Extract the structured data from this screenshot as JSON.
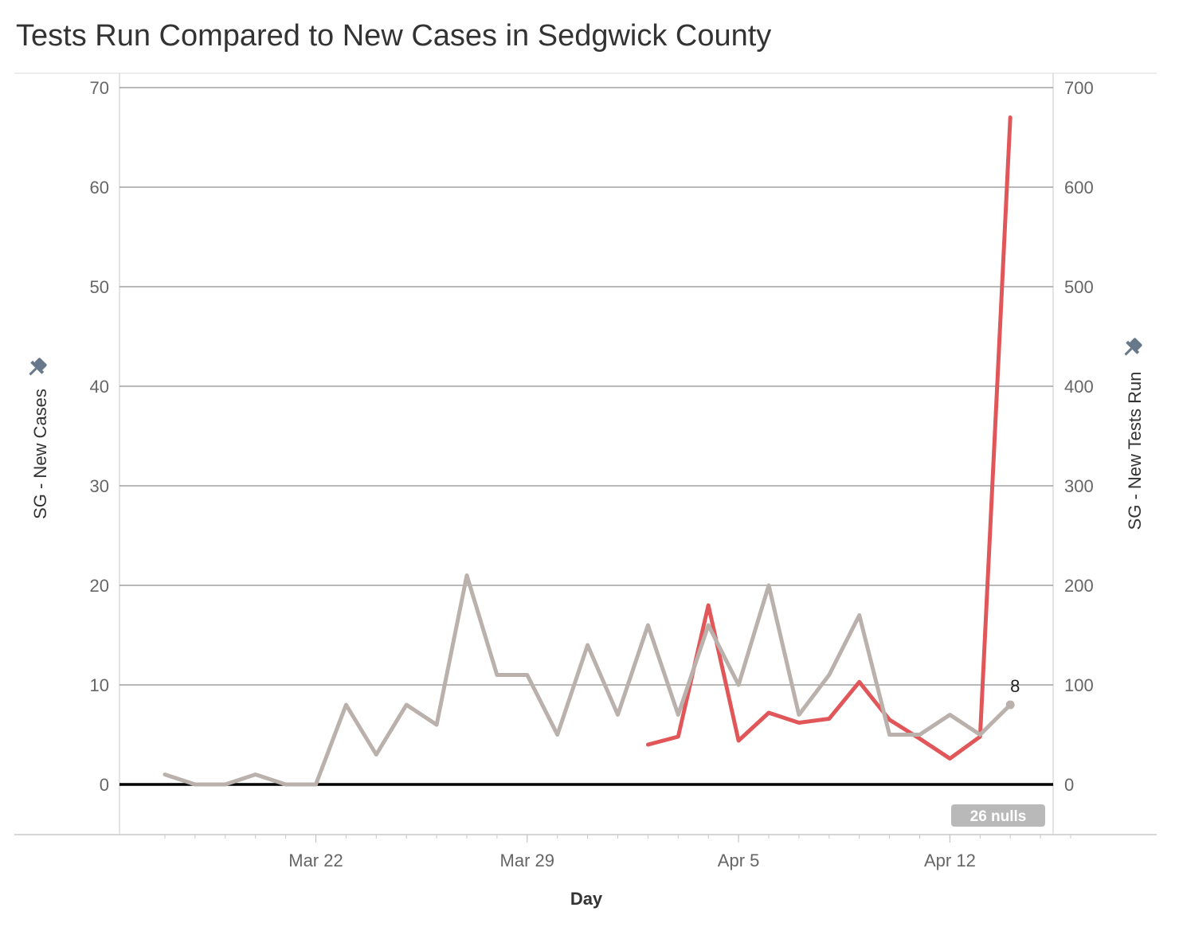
{
  "chart_data": {
    "type": "line",
    "title": "Tests Run Compared to New Cases in Sedgwick County",
    "xlabel": "Day",
    "ylabel_left": "SG - New Cases",
    "ylabel_right": "SG - New Tests Run",
    "ylim_left": [
      0,
      70
    ],
    "ylim_right": [
      0,
      700
    ],
    "yticks_left": [
      "0",
      "10",
      "20",
      "30",
      "40",
      "50",
      "60",
      "70"
    ],
    "yticks_right": [
      "0",
      "100",
      "200",
      "300",
      "400",
      "500",
      "600",
      "700"
    ],
    "x_tick_labels": [
      "Mar 22",
      "Mar 29",
      "Apr 5",
      "Apr 12"
    ],
    "x": [
      "Mar 17",
      "Mar 18",
      "Mar 19",
      "Mar 20",
      "Mar 21",
      "Mar 22",
      "Mar 23",
      "Mar 24",
      "Mar 25",
      "Mar 26",
      "Mar 27",
      "Mar 28",
      "Mar 29",
      "Mar 30",
      "Mar 31",
      "Apr 1",
      "Apr 2",
      "Apr 3",
      "Apr 4",
      "Apr 5",
      "Apr 6",
      "Apr 7",
      "Apr 8",
      "Apr 9",
      "Apr 10",
      "Apr 11",
      "Apr 12",
      "Apr 13",
      "Apr 14",
      "Apr 15",
      "Apr 16"
    ],
    "grid": true,
    "series": [
      {
        "name": "SG - New Cases",
        "axis": "left",
        "color": "#bab0ac",
        "values": [
          1,
          0,
          0,
          1,
          0,
          0,
          8,
          3,
          8,
          6,
          21,
          11,
          11,
          5,
          14,
          7,
          16,
          7,
          16,
          10,
          20,
          7,
          11,
          17,
          5,
          5,
          7,
          5,
          8,
          null,
          null
        ],
        "end_label": "8"
      },
      {
        "name": "SG - New Tests Run",
        "axis": "right",
        "color": "#e15759",
        "values": [
          null,
          null,
          null,
          null,
          null,
          null,
          null,
          null,
          null,
          null,
          null,
          null,
          null,
          null,
          null,
          null,
          40,
          48,
          180,
          44,
          72,
          62,
          66,
          103,
          65,
          46,
          26,
          48,
          670,
          null,
          null
        ]
      }
    ],
    "nulls_badge": "26 nulls",
    "pin_icon": "pin-icon"
  }
}
